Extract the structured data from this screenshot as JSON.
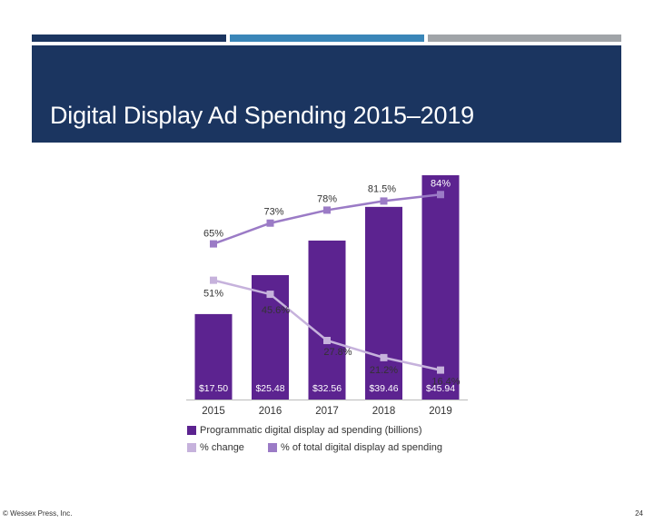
{
  "slide": {
    "title": "Digital Display Ad Spending 2015–2019",
    "footer_left": "© Wessex Press, Inc.",
    "page_number": "24"
  },
  "colors": {
    "bar_dark": "#1b3560",
    "bar_mid": "#3a86b8",
    "bar_light": "#a0a4a8",
    "header_bg": "#1b3560",
    "bars": "#5c2390",
    "pct_change_line": "#c6b2dc",
    "pct_total_line": "#9b7bc6"
  },
  "chart_data": {
    "type": "bar",
    "categories": [
      "2015",
      "2016",
      "2017",
      "2018",
      "2019"
    ],
    "series": [
      {
        "name": "Programmatic digital display ad spending (billions)",
        "type": "bar",
        "values": [
          17.5,
          25.48,
          32.56,
          39.46,
          45.94
        ],
        "labels": [
          "$17.50",
          "$25.48",
          "$32.56",
          "$39.46",
          "$45.94"
        ]
      },
      {
        "name": "% change",
        "type": "line",
        "values": [
          51,
          45.6,
          27.8,
          21.2,
          16.4
        ],
        "labels": [
          "51%",
          "45.6%",
          "27.8%",
          "21.2%",
          "16.4%"
        ]
      },
      {
        "name": "% of total digital display ad spending",
        "type": "line",
        "values": [
          65,
          73,
          78,
          81.5,
          84
        ],
        "labels": [
          "65%",
          "73%",
          "78%",
          "81.5%",
          "84%"
        ]
      }
    ],
    "title": "",
    "xlabel": "",
    "ylabel": "",
    "legend": "bottom"
  }
}
